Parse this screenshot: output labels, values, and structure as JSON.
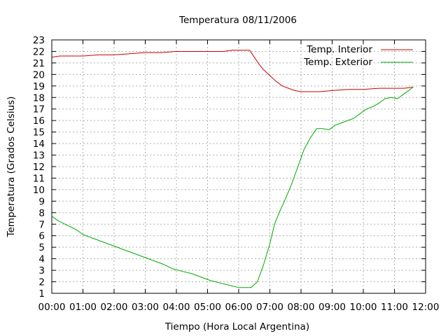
{
  "chart_data": {
    "type": "line",
    "title": "Temperatura 08/11/2006",
    "xlabel": "Tiempo (Hora Local Argentina)",
    "ylabel": "Temperatura (Grados Celsius)",
    "x_unit": "hours",
    "xlim": [
      0,
      12
    ],
    "ylim": [
      1,
      23
    ],
    "x_ticks": [
      0,
      1,
      2,
      3,
      4,
      5,
      6,
      7,
      8,
      9,
      10,
      11,
      12
    ],
    "x_tick_labels": [
      "00:00",
      "01:00",
      "02:00",
      "03:00",
      "04:00",
      "05:00",
      "06:00",
      "07:00",
      "08:00",
      "09:00",
      "10:00",
      "11:00",
      "12:00"
    ],
    "y_ticks": [
      1,
      2,
      3,
      4,
      5,
      6,
      7,
      8,
      9,
      10,
      11,
      12,
      13,
      14,
      15,
      16,
      17,
      18,
      19,
      20,
      21,
      22,
      23
    ],
    "grid": true,
    "legend_position": "top-right",
    "series": [
      {
        "name": "Temp. Interior",
        "color": "#cc0000",
        "x": [
          0,
          0.25,
          0.5,
          1.0,
          1.5,
          2.0,
          2.5,
          3.0,
          3.5,
          4.0,
          4.5,
          5.0,
          5.5,
          5.8,
          6.0,
          6.2,
          6.35,
          6.5,
          6.65,
          6.8,
          7.0,
          7.2,
          7.4,
          7.6,
          7.8,
          8.0,
          8.3,
          8.6,
          9.0,
          9.5,
          10.0,
          10.5,
          11.0,
          11.3,
          11.6
        ],
        "y": [
          21.5,
          21.6,
          21.6,
          21.6,
          21.7,
          21.7,
          21.8,
          21.9,
          21.9,
          22.0,
          22.0,
          22.0,
          22.0,
          22.1,
          22.1,
          22.1,
          22.1,
          21.5,
          20.9,
          20.4,
          19.9,
          19.4,
          19.0,
          18.8,
          18.6,
          18.5,
          18.5,
          18.5,
          18.6,
          18.7,
          18.7,
          18.8,
          18.8,
          18.8,
          18.9
        ]
      },
      {
        "name": "Temp. Exterior",
        "color": "#00aa00",
        "x": [
          0,
          0.2,
          0.5,
          0.8,
          1.0,
          1.3,
          1.6,
          2.0,
          2.3,
          2.6,
          3.0,
          3.3,
          3.6,
          3.9,
          4.2,
          4.5,
          4.8,
          5.1,
          5.4,
          5.7,
          6.0,
          6.2,
          6.4,
          6.6,
          6.8,
          7.0,
          7.15,
          7.3,
          7.5,
          7.7,
          7.9,
          8.1,
          8.3,
          8.5,
          8.7,
          8.9,
          9.1,
          9.3,
          9.5,
          9.7,
          9.9,
          10.1,
          10.3,
          10.5,
          10.7,
          10.9,
          11.1,
          11.3,
          11.6
        ],
        "y": [
          7.7,
          7.3,
          6.9,
          6.5,
          6.1,
          5.8,
          5.5,
          5.1,
          4.8,
          4.5,
          4.1,
          3.8,
          3.5,
          3.1,
          2.9,
          2.7,
          2.4,
          2.1,
          1.9,
          1.7,
          1.5,
          1.5,
          1.5,
          2.0,
          3.5,
          5.3,
          7.0,
          8.0,
          9.2,
          10.5,
          12.0,
          13.5,
          14.5,
          15.3,
          15.3,
          15.2,
          15.6,
          15.8,
          16.0,
          16.2,
          16.6,
          17.0,
          17.2,
          17.5,
          17.9,
          18.0,
          17.9,
          18.3,
          18.9
        ]
      }
    ]
  }
}
